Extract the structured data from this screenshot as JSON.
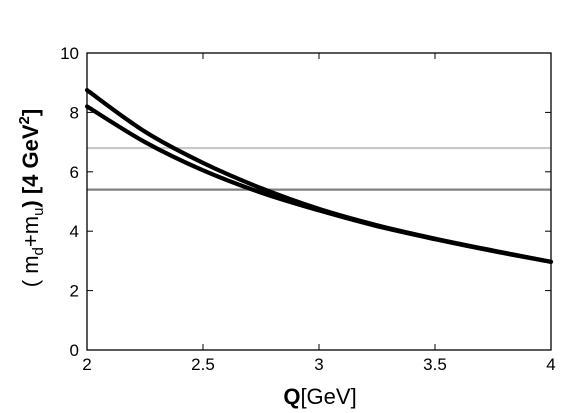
{
  "chart_data": {
    "type": "line",
    "xlabel_bold": "Q",
    "xlabel_rest": "[GeV]",
    "ylabel_open": "( m",
    "ylabel_sub_d": "d",
    "ylabel_plus": "+m",
    "ylabel_sub_u": "u",
    "ylabel_close": ") [4 GeV",
    "ylabel_sup": "2",
    "ylabel_end": "]",
    "xlim": [
      2,
      4
    ],
    "ylim": [
      0,
      10
    ],
    "xticks": [
      "2",
      "2.5",
      "3",
      "3.5",
      "4"
    ],
    "xtick_values": [
      2,
      2.5,
      3,
      3.5,
      4
    ],
    "yticks": [
      "0",
      "2",
      "4",
      "6",
      "8",
      "10"
    ],
    "ytick_values": [
      0,
      2,
      4,
      6,
      8,
      10
    ],
    "grid": false,
    "series": [
      {
        "x": [
          2.0,
          2.25,
          2.5,
          2.75,
          3.0,
          3.25,
          3.5,
          3.75,
          4.0
        ],
        "y": [
          8.75,
          7.35,
          6.3,
          5.45,
          4.75,
          4.2,
          3.75,
          3.35,
          2.97
        ],
        "color": "#000000"
      },
      {
        "x": [
          2.0,
          2.25,
          2.5,
          2.75,
          3.0,
          3.25,
          3.5,
          3.75,
          4.0
        ],
        "y": [
          8.2,
          7.0,
          6.05,
          5.3,
          4.7,
          4.17,
          3.73,
          3.33,
          2.97
        ],
        "color": "#000000"
      }
    ],
    "hlines": [
      {
        "y": 6.8,
        "color": "#c8c8c8"
      },
      {
        "y": 5.4,
        "color": "#808080"
      }
    ]
  }
}
